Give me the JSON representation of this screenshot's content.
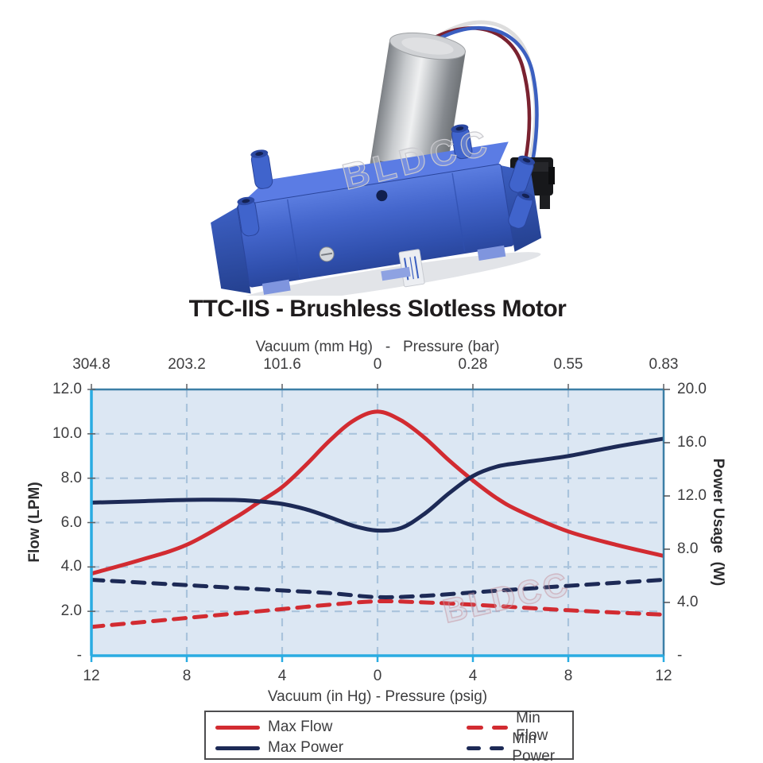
{
  "title": "TTC-IIS - Brushless Slotless Motor",
  "product": {
    "description": "blue dual-head diaphragm pump with stainless brushless slotless motor, wire leads and black connector",
    "watermark": "BLDCC"
  },
  "chart_data": {
    "type": "line",
    "grid": true,
    "watermark": "BLDCC",
    "x_range": [
      -12,
      12
    ],
    "top_axis": {
      "label": "Vacuum (mm Hg)   -   Pressure (bar)",
      "ticks": [
        "304.8",
        "203.2",
        "101.6",
        "0",
        "0.28",
        "0.55",
        "0.83"
      ]
    },
    "bottom_axis": {
      "label": "Vacuum (in Hg) - Pressure (psig)",
      "ticks": [
        "12",
        "8",
        "4",
        "0",
        "4",
        "8",
        "12"
      ]
    },
    "left_axis": {
      "label": "Flow (LPM)",
      "range": [
        0,
        12
      ],
      "ticks": [
        "12.0",
        "10.0",
        "8.0",
        "6.0",
        "4.0",
        "2.0",
        "-"
      ],
      "tick_values": [
        12,
        10,
        8,
        6,
        4,
        2,
        0
      ]
    },
    "right_axis": {
      "label": "Power Usage  (W)",
      "range": [
        0,
        20
      ],
      "ticks": [
        "20.0",
        "16.0",
        "12.0",
        "8.0",
        "4.0",
        "-"
      ],
      "tick_values": [
        20,
        16,
        12,
        8,
        4,
        0
      ]
    },
    "series": [
      {
        "name": "Max Flow",
        "axis": "left",
        "unit": "LPM",
        "style": "solid",
        "color": "#d22b31",
        "x": [
          -12,
          -10,
          -8,
          -6,
          -5,
          -4,
          -3,
          -2,
          -1,
          0,
          1,
          2,
          3,
          4,
          5,
          6,
          8,
          10,
          12
        ],
        "y": [
          3.7,
          4.3,
          5.0,
          6.2,
          6.9,
          7.6,
          8.6,
          9.7,
          10.6,
          11.0,
          10.6,
          9.8,
          8.8,
          7.9,
          7.1,
          6.5,
          5.6,
          5.0,
          4.5
        ]
      },
      {
        "name": "Min Flow",
        "axis": "left",
        "unit": "LPM",
        "style": "dashed",
        "color": "#d22b31",
        "x": [
          -12,
          -8,
          -4,
          -2,
          0,
          2,
          4,
          8,
          12
        ],
        "y": [
          1.3,
          1.7,
          2.1,
          2.3,
          2.45,
          2.4,
          2.3,
          2.05,
          1.85
        ]
      },
      {
        "name": "Max Power",
        "axis": "right",
        "unit": "W",
        "style": "solid",
        "color": "#1d2a56",
        "x": [
          -12,
          -10,
          -8,
          -6,
          -5,
          -4,
          -3,
          -2,
          -1,
          0,
          1,
          2,
          3,
          4,
          5,
          6,
          8,
          10,
          12
        ],
        "y": [
          11.5,
          11.6,
          11.7,
          11.7,
          11.6,
          11.4,
          11.0,
          10.4,
          9.75,
          9.4,
          9.6,
          10.7,
          12.2,
          13.5,
          14.2,
          14.5,
          15.0,
          15.7,
          16.3
        ]
      },
      {
        "name": "Min Power",
        "axis": "right",
        "unit": "W",
        "style": "dashed",
        "color": "#1d2a56",
        "x": [
          -12,
          -8,
          -4,
          -2,
          0,
          2,
          4,
          8,
          12
        ],
        "y": [
          5.7,
          5.3,
          4.9,
          4.7,
          4.4,
          4.5,
          4.75,
          5.25,
          5.7
        ]
      }
    ],
    "legend": {
      "position": "bottom",
      "entries": [
        {
          "label": "Max Flow",
          "style": "solid",
          "color": "#d22b31"
        },
        {
          "label": "Min Flow",
          "style": "dashed",
          "color": "#d22b31"
        },
        {
          "label": "Max Power",
          "style": "solid",
          "color": "#1d2a56"
        },
        {
          "label": "Min Power",
          "style": "dashed",
          "color": "#1d2a56"
        }
      ]
    },
    "colors": {
      "plot_background": "#dce7f3",
      "gridline": "#a9c3dc",
      "axis_cyan": "#2aace2",
      "frame_dark": "#3c7fa6",
      "text": "#3d3d3f"
    }
  }
}
